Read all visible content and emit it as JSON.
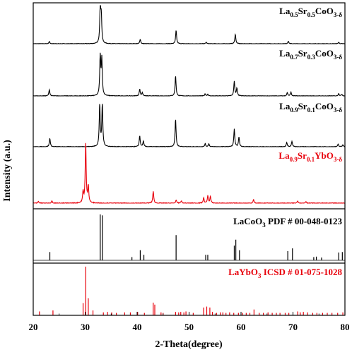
{
  "chart_data": {
    "type": "line",
    "xlabel": "2-Theta(degree)",
    "ylabel": "Intensity (a.u.)",
    "xlim": [
      20,
      80
    ],
    "xticks": [
      "20",
      "30",
      "40",
      "50",
      "60",
      "70",
      "80"
    ],
    "grid": false,
    "panels": [
      {
        "kind": "pattern",
        "name_parts": [
          {
            "t": "La",
            "sub": false
          },
          {
            "t": "0.5",
            "sub": true
          },
          {
            "t": "Sr",
            "sub": false
          },
          {
            "t": "0.5",
            "sub": true
          },
          {
            "t": "CoO",
            "sub": false
          },
          {
            "t": "3-δ",
            "sub": true
          }
        ],
        "color": "#000000",
        "peaks": [
          [
            23.1,
            0.06
          ],
          [
            32.9,
            1.0
          ],
          [
            33.1,
            0.7
          ],
          [
            40.6,
            0.12
          ],
          [
            47.5,
            0.36
          ],
          [
            53.3,
            0.04
          ],
          [
            58.9,
            0.26
          ],
          [
            69.1,
            0.07
          ],
          [
            78.8,
            0.04
          ]
        ]
      },
      {
        "kind": "pattern",
        "name_parts": [
          {
            "t": "La",
            "sub": false
          },
          {
            "t": "0.7",
            "sub": true
          },
          {
            "t": "Sr",
            "sub": false
          },
          {
            "t": "0.3",
            "sub": true
          },
          {
            "t": "CoO",
            "sub": false
          },
          {
            "t": "3-δ",
            "sub": true
          }
        ],
        "color": "#000000",
        "peaks": [
          [
            23.1,
            0.15
          ],
          [
            32.9,
            1.0
          ],
          [
            33.2,
            0.85
          ],
          [
            40.5,
            0.16
          ],
          [
            41.0,
            0.08
          ],
          [
            47.4,
            0.48
          ],
          [
            53.1,
            0.05
          ],
          [
            53.6,
            0.04
          ],
          [
            58.7,
            0.35
          ],
          [
            59.2,
            0.18
          ],
          [
            68.9,
            0.08
          ],
          [
            69.6,
            0.09
          ],
          [
            78.8,
            0.06
          ],
          [
            79.4,
            0.04
          ]
        ]
      },
      {
        "kind": "pattern",
        "name_parts": [
          {
            "t": "La",
            "sub": false
          },
          {
            "t": "0.9",
            "sub": true
          },
          {
            "t": "Sr",
            "sub": false
          },
          {
            "t": "0.1",
            "sub": true
          },
          {
            "t": "CoO",
            "sub": false
          },
          {
            "t": "3-δ",
            "sub": true
          }
        ],
        "color": "#000000",
        "peaks": [
          [
            23.2,
            0.2
          ],
          [
            32.8,
            1.0
          ],
          [
            33.3,
            1.0
          ],
          [
            40.5,
            0.26
          ],
          [
            41.2,
            0.13
          ],
          [
            47.4,
            0.66
          ],
          [
            53.1,
            0.07
          ],
          [
            53.8,
            0.07
          ],
          [
            58.7,
            0.42
          ],
          [
            59.6,
            0.23
          ],
          [
            68.8,
            0.1
          ],
          [
            69.8,
            0.13
          ],
          [
            78.7,
            0.06
          ],
          [
            79.6,
            0.05
          ]
        ]
      },
      {
        "kind": "pattern",
        "name_parts": [
          {
            "t": "La",
            "sub": false
          },
          {
            "t": "0.9",
            "sub": true
          },
          {
            "t": "Sr",
            "sub": false
          },
          {
            "t": "0.1",
            "sub": true
          },
          {
            "t": "YbO",
            "sub": false
          },
          {
            "t": "3-δ",
            "sub": true
          }
        ],
        "color": "#e8000b",
        "peaks": [
          [
            21.0,
            0.03
          ],
          [
            23.6,
            0.04
          ],
          [
            29.6,
            0.18
          ],
          [
            30.1,
            1.0
          ],
          [
            30.6,
            0.28
          ],
          [
            43.1,
            0.2
          ],
          [
            47.5,
            0.05
          ],
          [
            48.5,
            0.04
          ],
          [
            52.8,
            0.09
          ],
          [
            53.6,
            0.12
          ],
          [
            54.1,
            0.11
          ],
          [
            62.4,
            0.06
          ],
          [
            70.9,
            0.04
          ],
          [
            72.5,
            0.03
          ]
        ]
      },
      {
        "kind": "reference",
        "name_parts": [
          {
            "t": "LaCoO",
            "sub": false
          },
          {
            "t": "3",
            "sub": true
          },
          {
            "t": " PDF # 00-048-0123",
            "sub": false
          }
        ],
        "color": "#000000",
        "sticks": [
          [
            23.2,
            0.18
          ],
          [
            32.9,
            1.0
          ],
          [
            33.3,
            0.98
          ],
          [
            39.0,
            0.07
          ],
          [
            40.6,
            0.22
          ],
          [
            41.3,
            0.12
          ],
          [
            47.5,
            0.55
          ],
          [
            53.2,
            0.12
          ],
          [
            53.6,
            0.12
          ],
          [
            58.7,
            0.32
          ],
          [
            59.0,
            0.45
          ],
          [
            59.7,
            0.22
          ],
          [
            69.0,
            0.2
          ],
          [
            69.9,
            0.26
          ],
          [
            74.0,
            0.07
          ],
          [
            74.5,
            0.08
          ],
          [
            75.5,
            0.06
          ],
          [
            78.8,
            0.17
          ],
          [
            79.5,
            0.18
          ]
        ]
      },
      {
        "kind": "reference",
        "name_parts": [
          {
            "t": "LaYbO",
            "sub": false
          },
          {
            "t": "3",
            "sub": true
          },
          {
            "t": " ICSD # 01-075-1028",
            "sub": false
          }
        ],
        "color": "#e8000b",
        "sticks": [
          [
            21.2,
            0.08
          ],
          [
            23.8,
            0.1
          ],
          [
            29.6,
            0.25
          ],
          [
            30.1,
            1.0
          ],
          [
            30.6,
            0.35
          ],
          [
            31.5,
            0.1
          ],
          [
            33.5,
            0.06
          ],
          [
            34.3,
            0.07
          ],
          [
            35.1,
            0.06
          ],
          [
            36.0,
            0.05
          ],
          [
            37.6,
            0.06
          ],
          [
            38.7,
            0.06
          ],
          [
            40.1,
            0.07
          ],
          [
            41.4,
            0.05
          ],
          [
            43.1,
            0.26
          ],
          [
            43.4,
            0.22
          ],
          [
            44.6,
            0.06
          ],
          [
            45.0,
            0.05
          ],
          [
            47.4,
            0.07
          ],
          [
            48.0,
            0.06
          ],
          [
            48.4,
            0.07
          ],
          [
            49.0,
            0.06
          ],
          [
            49.4,
            0.08
          ],
          [
            50.8,
            0.05
          ],
          [
            52.8,
            0.16
          ],
          [
            53.4,
            0.18
          ],
          [
            54.0,
            0.16
          ],
          [
            54.5,
            0.07
          ],
          [
            55.3,
            0.05
          ],
          [
            56.0,
            0.06
          ],
          [
            56.5,
            0.06
          ],
          [
            57.1,
            0.05
          ],
          [
            57.8,
            0.06
          ],
          [
            58.6,
            0.05
          ],
          [
            59.5,
            0.05
          ],
          [
            60.3,
            0.05
          ],
          [
            61.0,
            0.05
          ],
          [
            61.7,
            0.05
          ],
          [
            62.5,
            0.12
          ],
          [
            63.5,
            0.05
          ],
          [
            64.3,
            0.05
          ],
          [
            65.2,
            0.06
          ],
          [
            66.0,
            0.05
          ],
          [
            66.8,
            0.05
          ],
          [
            67.5,
            0.05
          ],
          [
            68.5,
            0.05
          ],
          [
            69.2,
            0.05
          ],
          [
            70.9,
            0.08
          ],
          [
            71.4,
            0.06
          ],
          [
            72.0,
            0.07
          ],
          [
            72.8,
            0.06
          ],
          [
            73.8,
            0.05
          ],
          [
            74.6,
            0.05
          ],
          [
            75.7,
            0.05
          ],
          [
            76.6,
            0.05
          ],
          [
            77.5,
            0.05
          ],
          [
            78.6,
            0.05
          ],
          [
            79.6,
            0.06
          ]
        ]
      }
    ]
  }
}
